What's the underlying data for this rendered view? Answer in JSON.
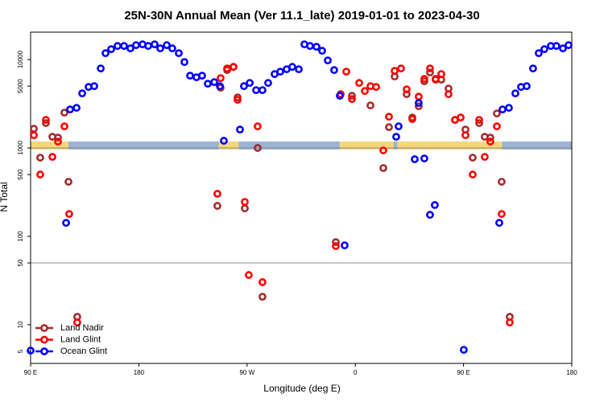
{
  "chart_data": {
    "type": "scatter",
    "title": "25N-30N Annual Mean (Ver 11.1_late)   2019-01-01 to 2023-04-30",
    "x_label": "Longitude (deg E)",
    "y_label": "N Total",
    "log_y": true,
    "xlim": [
      90,
      540
    ],
    "ylim": [
      3.65,
      20400
    ],
    "xticks": [
      {
        "value": 90,
        "label": "90 E"
      },
      180,
      {
        "value": 270,
        "label": "90 W"
      },
      {
        "value": 360,
        "label": "0"
      },
      {
        "value": 450,
        "label": "90 E"
      },
      {
        "value": 540,
        "label": "180"
      }
    ],
    "yticks": [
      5,
      10,
      50,
      100,
      500,
      1000,
      5000,
      10000
    ],
    "ref_lines": [
      50,
      1000
    ],
    "land_color": "#f5d77a",
    "ocean_color": "#9db3d6",
    "land_mask": [
      [
        90,
        121.5
      ],
      [
        246.5,
        263
      ],
      [
        347,
        392
      ],
      [
        395,
        482
      ]
    ],
    "legend": "bottom-left",
    "series": [
      {
        "name": "Land Nadir",
        "color": "#a52a2a",
        "x": [
          92.7,
          98,
          102.7,
          108.1,
          112.8,
          118.1,
          121.5,
          128.8,
          245.3,
          248,
          253.4,
          258.7,
          262.1,
          268.1,
          278.8,
          282.8,
          343.8,
          357.2,
          372.6,
          383.3,
          388,
          392.7,
          402.7,
          407.4,
          412.7,
          417.4,
          422.1,
          426.8,
          431.5,
          437.5,
          442.9,
          451.6,
          457.6,
          463,
          467.6,
          472.3,
          477.7,
          481.7,
          488.4
        ],
        "values": [
          1649,
          776,
          1910,
          1337,
          1309,
          2506,
          414,
          12.3,
          221,
          4795,
          7600,
          8260,
          3731,
          207,
          998,
          20.7,
          86,
          3890,
          3027,
          592,
          1718,
          6427,
          4055,
          2208,
          2964,
          5675,
          7135,
          5915,
          5915,
          4700,
          2076,
          1614,
          776,
          1910,
          1337,
          1309,
          2454,
          414,
          12.3
        ]
      },
      {
        "name": "Land Glint",
        "color": "#ff0000",
        "x": [
          92.7,
          98,
          102.7,
          108.1,
          112.8,
          118.1,
          122.1,
          128.8,
          245.3,
          248,
          253.4,
          258.7,
          262.1,
          268.1,
          271.4,
          278.8,
          282.8,
          343.8,
          347.8,
          352.5,
          357.2,
          363.2,
          367.9,
          372.6,
          377.3,
          383.3,
          388,
          392.7,
          398,
          402.7,
          407.4,
          412.7,
          417.4,
          422.1,
          426.8,
          431.5,
          437.5,
          442.9,
          447.6,
          451.6,
          457.6,
          463,
          467.6,
          472.3,
          477.7,
          481.7,
          488.4
        ],
        "values": [
          1393,
          500,
          2076,
          792,
          1180,
          1754,
          179,
          10.6,
          303,
          6165,
          7925,
          8260,
          3500,
          245,
          36.5,
          1754,
          30.3,
          77.6,
          4055,
          7290,
          3576,
          5435,
          4405,
          5000,
          4895,
          937,
          2256,
          7445,
          7925,
          4600,
          2120,
          3810,
          6040,
          7925,
          6040,
          6840,
          4055,
          2076,
          2208,
          1393,
          500,
          2076,
          792,
          1180,
          1754,
          179,
          10.6
        ]
      },
      {
        "name": "Ocean Glint",
        "color": "#0000ff",
        "x": [
          90,
          119.5,
          122.8,
          128.2,
          132.9,
          138.2,
          142.9,
          148.3,
          152.3,
          157,
          162.3,
          167.7,
          173,
          177.7,
          183.1,
          187.8,
          193.1,
          197.8,
          203.2,
          207.8,
          213.2,
          217.9,
          222.6,
          227.9,
          232.6,
          237.3,
          242.7,
          247.4,
          250.7,
          264.1,
          267.4,
          272.2,
          277.5,
          282.8,
          287.5,
          292.9,
          297.6,
          302.9,
          307.6,
          313,
          317.7,
          322.3,
          327.7,
          332.4,
          337.1,
          342.4,
          347.1,
          351.1,
          394,
          396,
          409.4,
          412.7,
          417.4,
          422.1,
          426.1,
          450.2,
          479.7,
          482.4,
          487.7,
          493.1,
          497.8,
          502.5,
          507.8,
          512.5,
          517.2,
          522.6,
          527.2,
          532.6,
          537.3
        ],
        "values": [
          5.1,
          142,
          2723,
          2843,
          4140,
          4895,
          5000,
          7925,
          11800,
          13090,
          14240,
          14240,
          13370,
          14540,
          14850,
          14240,
          14850,
          13370,
          14540,
          13370,
          11800,
          9370,
          6565,
          6295,
          6565,
          5325,
          5550,
          5000,
          1205,
          1614,
          5000,
          5435,
          4505,
          4505,
          5435,
          6840,
          7290,
          7760,
          8260,
          7760,
          14850,
          14240,
          13940,
          12560,
          9770,
          7600,
          3890,
          79,
          1337,
          1754,
          745,
          3220,
          760,
          175,
          226,
          5.2,
          142,
          2723,
          2843,
          4140,
          4895,
          5000,
          7925,
          11800,
          13090,
          14240,
          14240,
          13370,
          14540
        ]
      }
    ]
  }
}
